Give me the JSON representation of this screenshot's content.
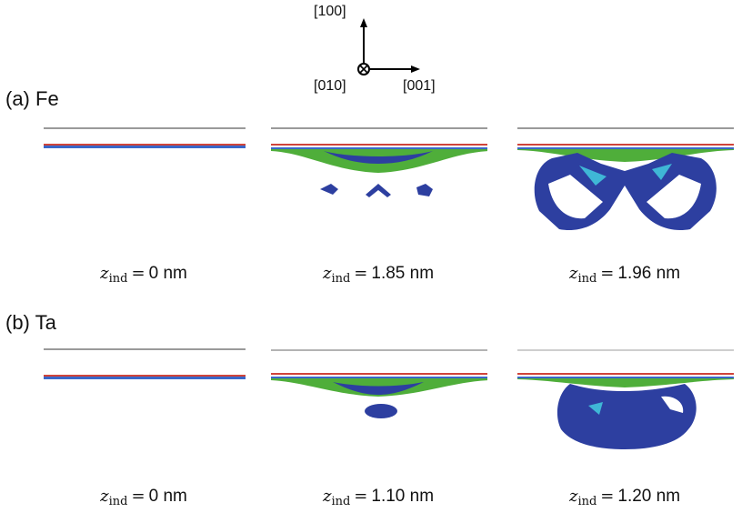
{
  "orientation": {
    "up_label": "[100]",
    "into_label": "[010]",
    "right_label": "[001]"
  },
  "rows": [
    {
      "title": "(a) Fe",
      "panels": [
        {
          "var": "z",
          "sub": "ind",
          "value": "0 nm"
        },
        {
          "var": "z",
          "sub": "ind",
          "value": "1.85 nm"
        },
        {
          "var": "z",
          "sub": "ind",
          "value": "1.96 nm"
        }
      ]
    },
    {
      "title": "(b) Ta",
      "panels": [
        {
          "var": "z",
          "sub": "ind",
          "value": "0 nm"
        },
        {
          "var": "z",
          "sub": "ind",
          "value": "1.10 nm"
        },
        {
          "var": "z",
          "sub": "ind",
          "value": "1.20 nm"
        }
      ]
    }
  ],
  "colors": {
    "indenter": "#9a9a9a",
    "surface_red": "#d0443a",
    "surface_blue": "#3a67c9",
    "dislocation_green": "#4fae3a",
    "defect_blue": "#2d3fa0",
    "defect_cyan": "#3fb7d6"
  }
}
